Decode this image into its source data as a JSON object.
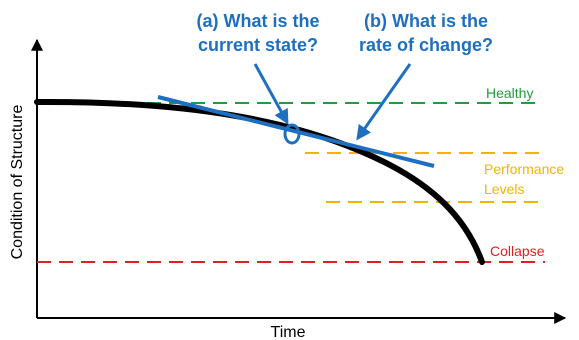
{
  "axes": {
    "x_label": "Time",
    "y_label": "Condition of Structure"
  },
  "questions": {
    "a": {
      "line1": "(a) What is the",
      "line2": "current state?"
    },
    "b": {
      "line1": "(b) What is the",
      "line2": "rate of change?"
    }
  },
  "levels": {
    "healthy": "Healthy",
    "performance_line1": "Performance",
    "performance_line2": "Levels",
    "collapse": "Collapse"
  },
  "colors": {
    "blue": "#1f6fc0",
    "green": "#1f9e3a",
    "yellow": "#f0b400",
    "red": "#e02020",
    "curve": "#000000"
  }
}
